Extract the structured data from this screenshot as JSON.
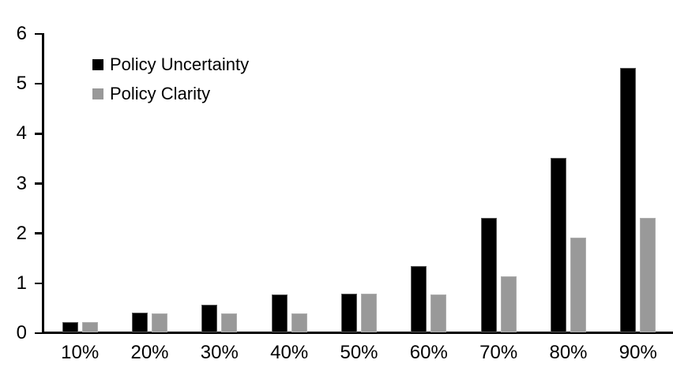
{
  "chart_data": {
    "type": "bar",
    "title": "",
    "xlabel": "",
    "ylabel": "",
    "categories": [
      "10%",
      "20%",
      "30%",
      "40%",
      "50%",
      "60%",
      "70%",
      "80%",
      "90%"
    ],
    "series": [
      {
        "name": "Policy Uncertainty",
        "color": "#000000",
        "values": [
          0.2,
          0.4,
          0.55,
          0.76,
          0.78,
          1.33,
          2.3,
          3.5,
          5.3
        ]
      },
      {
        "name": "Policy Clarity",
        "color": "#999999",
        "values": [
          0.2,
          0.38,
          0.38,
          0.38,
          0.77,
          0.76,
          1.13,
          1.9,
          2.3
        ]
      }
    ],
    "ylim": [
      0,
      6
    ],
    "yticks": [
      0,
      1,
      2,
      3,
      4,
      5,
      6
    ],
    "grid": false,
    "legend_position": "top-left-inside",
    "axis_color": "#000000",
    "background_color": "#ffffff"
  }
}
